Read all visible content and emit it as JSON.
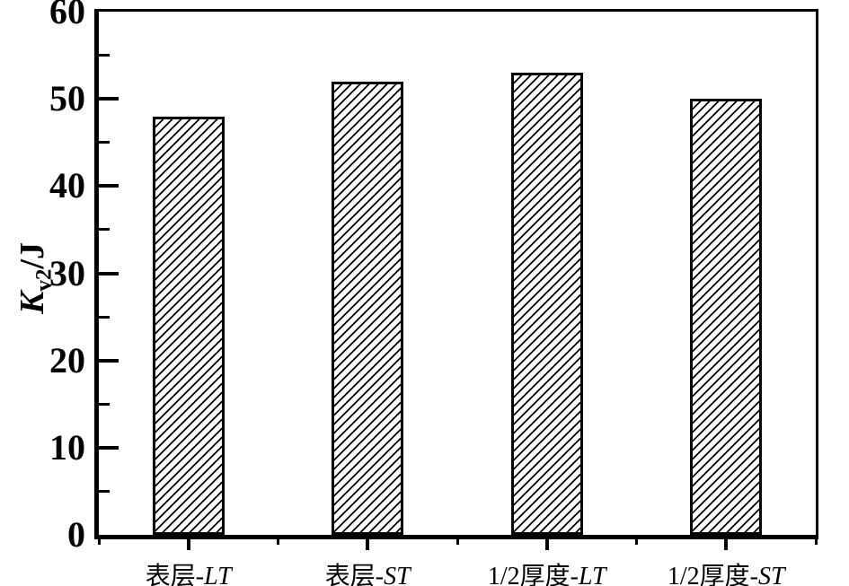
{
  "figure": {
    "background": "#ffffff",
    "axis_color": "#000000",
    "text_color": "#000000"
  },
  "chart_data": {
    "type": "bar",
    "title": "",
    "categories": [
      "表层-LT",
      "表层-ST",
      "1/2厚度-LT",
      "1/2厚度-ST"
    ],
    "category_parts": [
      {
        "text": "表层-",
        "italic": "LT"
      },
      {
        "text": "表层-",
        "italic": "ST"
      },
      {
        "text": "1/2厚度-",
        "italic": "LT"
      },
      {
        "text": "1/2厚度-",
        "italic": "ST"
      }
    ],
    "values": [
      48,
      52,
      53,
      50
    ],
    "xlabel": "",
    "ylabel": "Kv2/J",
    "ylabel_parts": {
      "symbol": "K",
      "subscript": "v2",
      "suffix": "/J"
    },
    "ylim": [
      0,
      60
    ],
    "yticks": [
      0,
      10,
      20,
      30,
      40,
      50,
      60
    ],
    "minor_ytick_step": 5,
    "grid": false,
    "legend": "none",
    "bar_style": {
      "fill": "diagonal-hatch",
      "hatch_direction": "forward-slash",
      "hatch_color": "#000000",
      "edge_color": "#000000",
      "face_color": "#ffffff"
    }
  }
}
